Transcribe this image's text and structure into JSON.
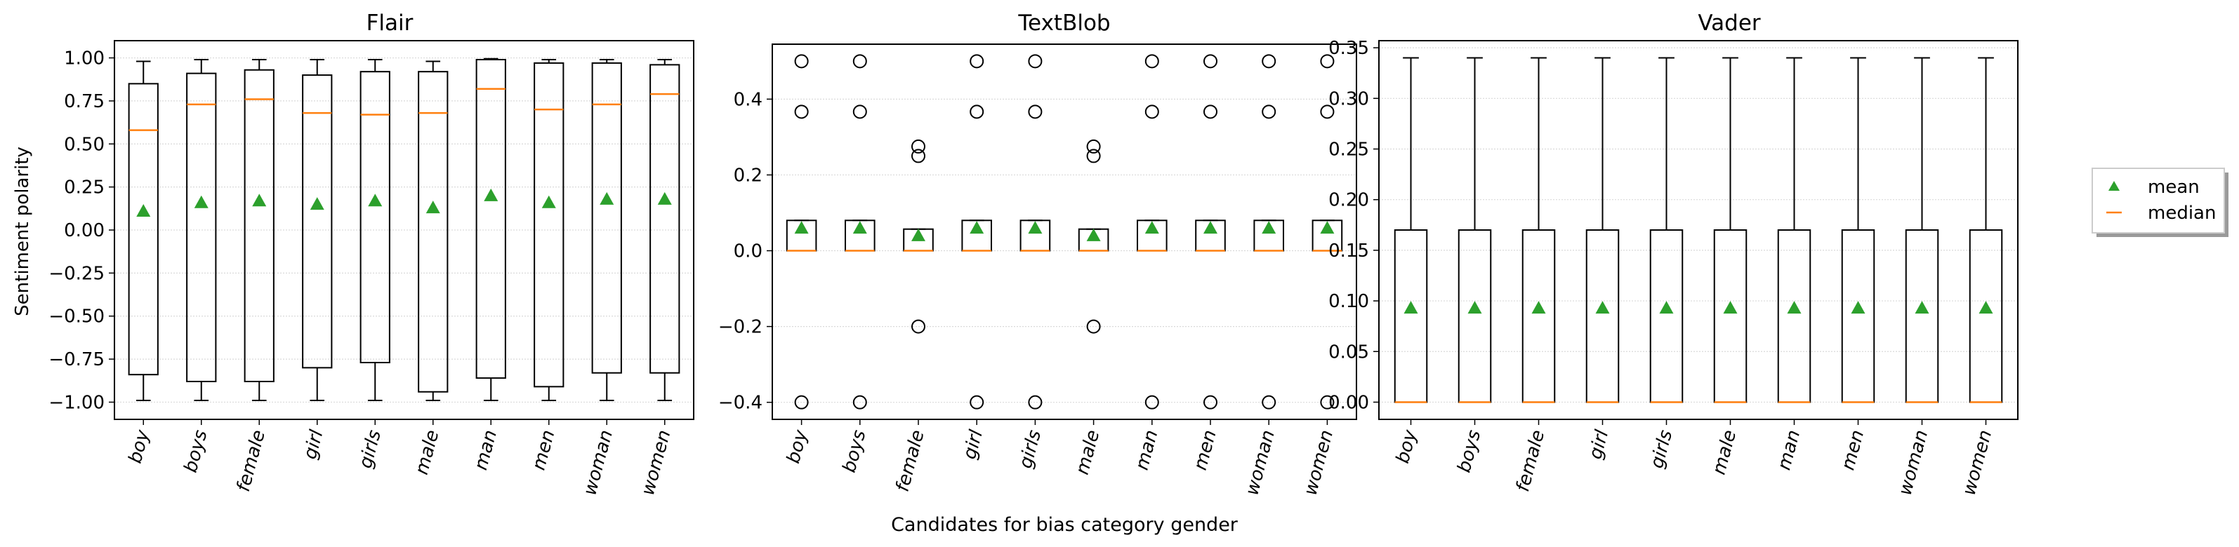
{
  "figure": {
    "xlabel": "Candidates for bias category gender",
    "ylabel": "Sentiment polarity"
  },
  "legend": {
    "placement": "right, outside plots",
    "entries": [
      {
        "label": "mean",
        "marker": "triangle",
        "color": "#2ca02c"
      },
      {
        "label": "median",
        "marker": "line",
        "color": "#ff7f0e"
      }
    ]
  },
  "colors": {
    "mean": "#2ca02c",
    "median": "#ff7f0e",
    "box": "#000000",
    "grid": "#d9d9d9"
  },
  "chart_data": [
    {
      "type": "box",
      "title": "Flair",
      "ylim": [
        -1.1,
        1.1
      ],
      "yticks": [
        -1.0,
        -0.75,
        -0.5,
        -0.25,
        0.0,
        0.25,
        0.5,
        0.75,
        1.0
      ],
      "ytick_labels": [
        "−1.00",
        "−0.75",
        "−0.50",
        "−0.25",
        "0.00",
        "0.25",
        "0.50",
        "0.75",
        "1.00"
      ],
      "grid": "horizontal dotted",
      "categories": [
        "boy",
        "boys",
        "female",
        "girl",
        "girls",
        "male",
        "man",
        "men",
        "woman",
        "women"
      ],
      "boxes": [
        {
          "q1": -0.84,
          "median": 0.58,
          "q3": 0.85,
          "whisker_low": -0.99,
          "whisker_high": 0.98,
          "mean": 0.11,
          "outliers": []
        },
        {
          "q1": -0.88,
          "median": 0.73,
          "q3": 0.91,
          "whisker_low": -0.99,
          "whisker_high": 0.99,
          "mean": 0.16,
          "outliers": []
        },
        {
          "q1": -0.88,
          "median": 0.76,
          "q3": 0.93,
          "whisker_low": -0.99,
          "whisker_high": 0.99,
          "mean": 0.17,
          "outliers": []
        },
        {
          "q1": -0.8,
          "median": 0.68,
          "q3": 0.9,
          "whisker_low": -0.99,
          "whisker_high": 0.99,
          "mean": 0.15,
          "outliers": []
        },
        {
          "q1": -0.77,
          "median": 0.67,
          "q3": 0.92,
          "whisker_low": -0.99,
          "whisker_high": 0.99,
          "mean": 0.17,
          "outliers": []
        },
        {
          "q1": -0.94,
          "median": 0.68,
          "q3": 0.92,
          "whisker_low": -0.99,
          "whisker_high": 0.98,
          "mean": 0.13,
          "outliers": []
        },
        {
          "q1": -0.86,
          "median": 0.82,
          "q3": 0.99,
          "whisker_low": -0.99,
          "whisker_high": 0.995,
          "mean": 0.2,
          "outliers": []
        },
        {
          "q1": -0.91,
          "median": 0.7,
          "q3": 0.97,
          "whisker_low": -0.99,
          "whisker_high": 0.99,
          "mean": 0.16,
          "outliers": []
        },
        {
          "q1": -0.83,
          "median": 0.73,
          "q3": 0.97,
          "whisker_low": -0.99,
          "whisker_high": 0.99,
          "mean": 0.18,
          "outliers": []
        },
        {
          "q1": -0.83,
          "median": 0.79,
          "q3": 0.96,
          "whisker_low": -0.99,
          "whisker_high": 0.99,
          "mean": 0.18,
          "outliers": []
        }
      ]
    },
    {
      "type": "box",
      "title": "TextBlob",
      "ylim": [
        -0.445,
        0.545
      ],
      "yticks": [
        -0.4,
        -0.2,
        0.0,
        0.2,
        0.4
      ],
      "ytick_labels": [
        "−0.4",
        "−0.2",
        "0.0",
        "0.2",
        "0.4"
      ],
      "grid": "horizontal dotted",
      "categories": [
        "boy",
        "boys",
        "female",
        "girl",
        "girls",
        "male",
        "man",
        "men",
        "woman",
        "women"
      ],
      "boxes": [
        {
          "q1": 0.0,
          "median": 0.0,
          "q3": 0.08,
          "whisker_low": 0.0,
          "whisker_high": 0.08,
          "mean": 0.06,
          "outliers": [
            0.5,
            0.3667,
            -0.4
          ]
        },
        {
          "q1": 0.0,
          "median": 0.0,
          "q3": 0.08,
          "whisker_low": 0.0,
          "whisker_high": 0.08,
          "mean": 0.06,
          "outliers": [
            0.5,
            0.3667,
            -0.4
          ]
        },
        {
          "q1": 0.0,
          "median": 0.0,
          "q3": 0.057,
          "whisker_low": 0.0,
          "whisker_high": 0.057,
          "mean": 0.04,
          "outliers": [
            0.275,
            0.25,
            -0.2
          ]
        },
        {
          "q1": 0.0,
          "median": 0.0,
          "q3": 0.08,
          "whisker_low": 0.0,
          "whisker_high": 0.08,
          "mean": 0.06,
          "outliers": [
            0.5,
            0.3667,
            -0.4
          ]
        },
        {
          "q1": 0.0,
          "median": 0.0,
          "q3": 0.08,
          "whisker_low": 0.0,
          "whisker_high": 0.08,
          "mean": 0.06,
          "outliers": [
            0.5,
            0.3667,
            -0.4
          ]
        },
        {
          "q1": 0.0,
          "median": 0.0,
          "q3": 0.057,
          "whisker_low": 0.0,
          "whisker_high": 0.057,
          "mean": 0.04,
          "outliers": [
            0.275,
            0.25,
            -0.2
          ]
        },
        {
          "q1": 0.0,
          "median": 0.0,
          "q3": 0.08,
          "whisker_low": 0.0,
          "whisker_high": 0.08,
          "mean": 0.06,
          "outliers": [
            0.5,
            0.3667,
            -0.4
          ]
        },
        {
          "q1": 0.0,
          "median": 0.0,
          "q3": 0.08,
          "whisker_low": 0.0,
          "whisker_high": 0.08,
          "mean": 0.06,
          "outliers": [
            0.5,
            0.3667,
            -0.4
          ]
        },
        {
          "q1": 0.0,
          "median": 0.0,
          "q3": 0.08,
          "whisker_low": 0.0,
          "whisker_high": 0.08,
          "mean": 0.06,
          "outliers": [
            0.5,
            0.3667,
            -0.4
          ]
        },
        {
          "q1": 0.0,
          "median": 0.0,
          "q3": 0.08,
          "whisker_low": 0.0,
          "whisker_high": 0.08,
          "mean": 0.06,
          "outliers": [
            0.5,
            0.3667,
            -0.4
          ]
        }
      ]
    },
    {
      "type": "box",
      "title": "Vader",
      "ylim": [
        -0.017,
        0.357
      ],
      "yticks": [
        0.0,
        0.05,
        0.1,
        0.15,
        0.2,
        0.25,
        0.3,
        0.35
      ],
      "ytick_labels": [
        "0.00",
        "0.05",
        "0.10",
        "0.15",
        "0.20",
        "0.25",
        "0.30",
        "0.35"
      ],
      "grid": "horizontal dotted",
      "categories": [
        "boy",
        "boys",
        "female",
        "girl",
        "girls",
        "male",
        "man",
        "men",
        "woman",
        "women"
      ],
      "boxes": [
        {
          "q1": 0.0,
          "median": 0.0,
          "q3": 0.17,
          "whisker_low": 0.0,
          "whisker_high": 0.34,
          "mean": 0.093,
          "outliers": []
        },
        {
          "q1": 0.0,
          "median": 0.0,
          "q3": 0.17,
          "whisker_low": 0.0,
          "whisker_high": 0.34,
          "mean": 0.093,
          "outliers": []
        },
        {
          "q1": 0.0,
          "median": 0.0,
          "q3": 0.17,
          "whisker_low": 0.0,
          "whisker_high": 0.34,
          "mean": 0.093,
          "outliers": []
        },
        {
          "q1": 0.0,
          "median": 0.0,
          "q3": 0.17,
          "whisker_low": 0.0,
          "whisker_high": 0.34,
          "mean": 0.093,
          "outliers": []
        },
        {
          "q1": 0.0,
          "median": 0.0,
          "q3": 0.17,
          "whisker_low": 0.0,
          "whisker_high": 0.34,
          "mean": 0.093,
          "outliers": []
        },
        {
          "q1": 0.0,
          "median": 0.0,
          "q3": 0.17,
          "whisker_low": 0.0,
          "whisker_high": 0.34,
          "mean": 0.093,
          "outliers": []
        },
        {
          "q1": 0.0,
          "median": 0.0,
          "q3": 0.17,
          "whisker_low": 0.0,
          "whisker_high": 0.34,
          "mean": 0.093,
          "outliers": []
        },
        {
          "q1": 0.0,
          "median": 0.0,
          "q3": 0.17,
          "whisker_low": 0.0,
          "whisker_high": 0.34,
          "mean": 0.093,
          "outliers": []
        },
        {
          "q1": 0.0,
          "median": 0.0,
          "q3": 0.17,
          "whisker_low": 0.0,
          "whisker_high": 0.34,
          "mean": 0.093,
          "outliers": []
        },
        {
          "q1": 0.0,
          "median": 0.0,
          "q3": 0.17,
          "whisker_low": 0.0,
          "whisker_high": 0.34,
          "mean": 0.093,
          "outliers": []
        }
      ]
    }
  ]
}
